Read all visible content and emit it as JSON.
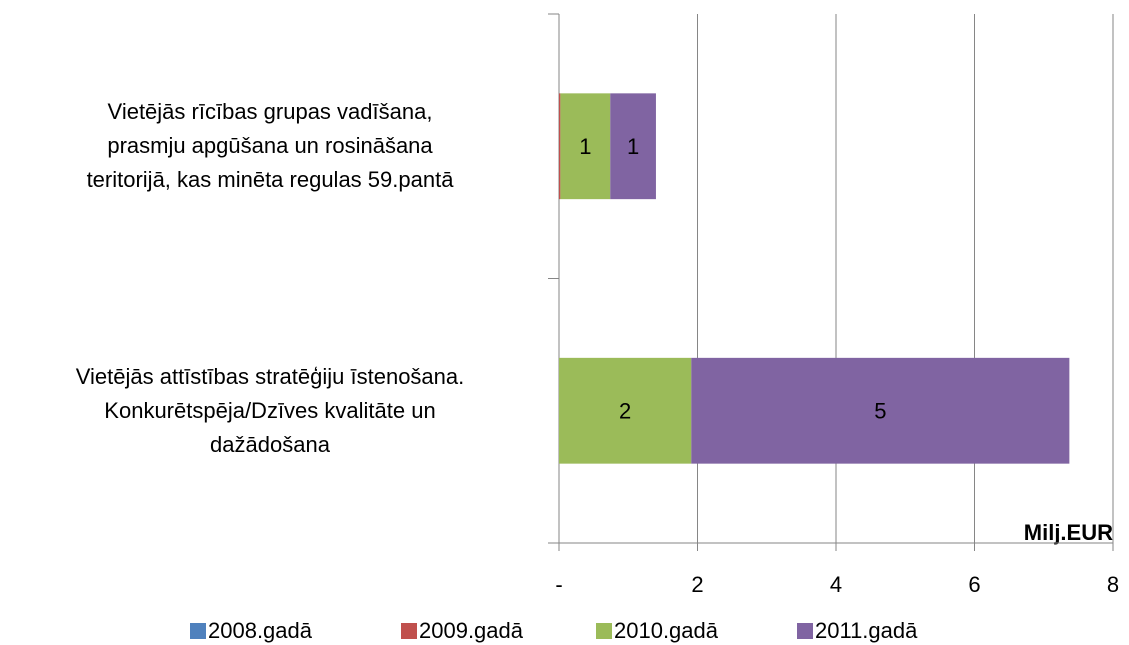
{
  "chart_data": {
    "type": "stacked_bar_horizontal",
    "categories": [
      "Vietējās rīcības grupas vadīšana,\nprasmju apgūšana un rosināšana\nteritorijā, kas minēta regulas 59.pantā",
      "Vietējās attīstības  stratēģiju īstenošana.\nKonkurētspēja/Dzīves kvalitāte un\ndažādošana"
    ],
    "series": [
      {
        "name": "2008.gadā",
        "color": "#4f81bd",
        "values": [
          0,
          0
        ]
      },
      {
        "name": "2009.gadā",
        "color": "#c0504d",
        "values": [
          0.02,
          0
        ]
      },
      {
        "name": "2010.gadā",
        "color": "#9bbb59",
        "values": [
          0.72,
          1.91
        ],
        "value_labels": [
          "1",
          "2"
        ]
      },
      {
        "name": "2011.gadā",
        "color": "#8064a2",
        "values": [
          0.66,
          5.46
        ],
        "value_labels": [
          "1",
          "5"
        ]
      }
    ],
    "xlim": [
      0,
      8
    ],
    "xticks": [
      {
        "value": 0,
        "label": "-"
      },
      2,
      4,
      6,
      8
    ],
    "grid": true,
    "annotation": "Milj.EUR",
    "legend": "bottom"
  }
}
